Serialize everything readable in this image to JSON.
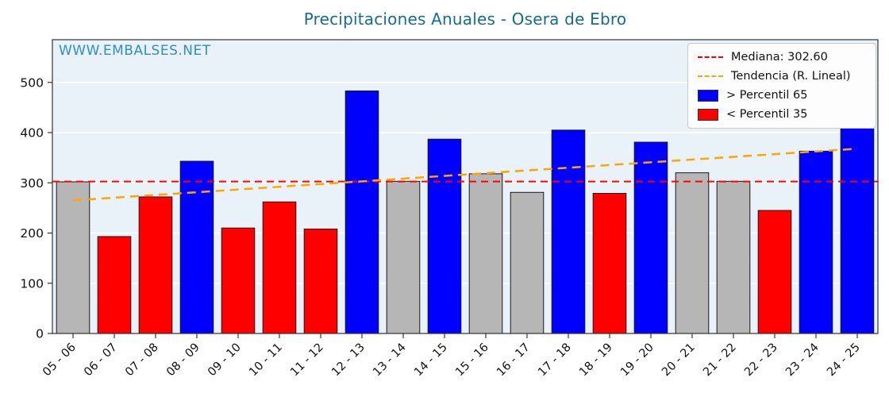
{
  "watermark": "WWW.EMBALSES.NET",
  "chart_data": {
    "type": "bar",
    "title": "Precipitaciones Anuales - Osera de Ebro",
    "xlabel": "",
    "ylabel": "",
    "categories": [
      "05 - 06",
      "06 - 07",
      "07 - 08",
      "08 - 09",
      "09 - 10",
      "10 - 11",
      "11 - 12",
      "12 - 13",
      "13 - 14",
      "14 - 15",
      "15 - 16",
      "16 - 17",
      "17 - 18",
      "18 - 19",
      "19 - 20",
      "20 - 21",
      "21 - 22",
      "22 - 23",
      "23 - 24",
      "24 - 25"
    ],
    "values": [
      302,
      193,
      272,
      343,
      210,
      262,
      208,
      483,
      303,
      387,
      318,
      281,
      405,
      279,
      381,
      320,
      303,
      245,
      363,
      450
    ],
    "bar_classes": [
      "mid",
      "low",
      "low",
      "high",
      "low",
      "low",
      "low",
      "high",
      "mid",
      "high",
      "mid",
      "mid",
      "high",
      "low",
      "high",
      "mid",
      "mid",
      "low",
      "high",
      "high"
    ],
    "colors": {
      "high": "#0000ff",
      "low": "#ff0000",
      "mid": "#b6b6b6"
    },
    "median": {
      "value": 302.6,
      "color": "#ff0000"
    },
    "trend": {
      "start": 265,
      "end": 368,
      "color": "#ffa500"
    },
    "legend": {
      "median_label": "Mediana: 302.60",
      "trend_label": "Tendencia (R. Lineal)",
      "high_label": "> Percentil 65",
      "low_label": "< Percentil 35"
    },
    "yticks": [
      0,
      100,
      200,
      300,
      400,
      500
    ],
    "ylim": [
      0,
      585
    ],
    "grid": true,
    "legend_position": "top-right",
    "plot_background": "#e9f2f9"
  }
}
